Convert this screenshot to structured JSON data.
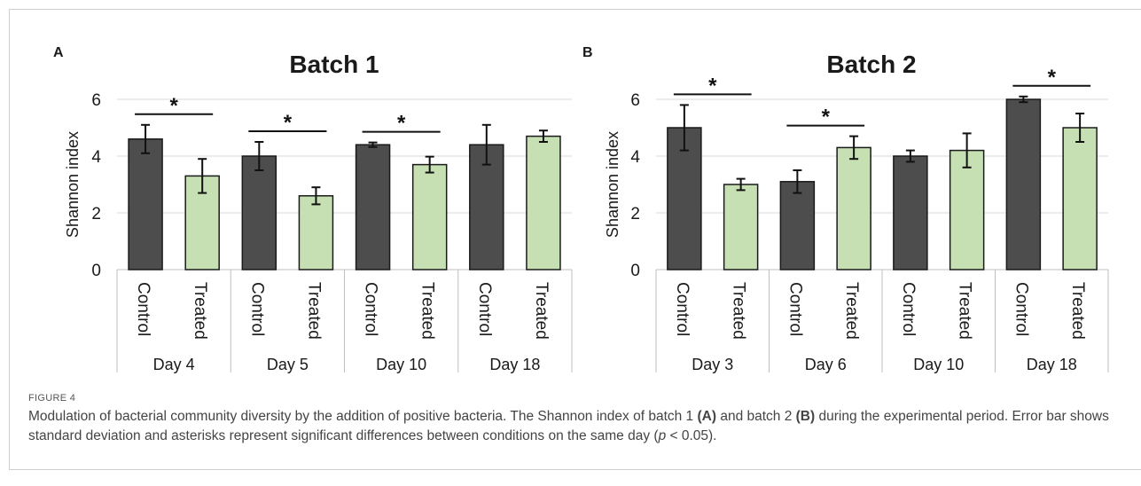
{
  "figure": {
    "label": "FIGURE 4",
    "caption_parts": [
      {
        "text": "Modulation of bacterial community diversity by the addition of positive bacteria. The Shannon index of batch 1 ",
        "style": "normal"
      },
      {
        "text": "(A)",
        "style": "bold"
      },
      {
        "text": " and batch 2 ",
        "style": "normal"
      },
      {
        "text": "(B)",
        "style": "bold"
      },
      {
        "text": " during the experimental period. Error bar shows standard deviation and asterisks represent significant differences between conditions on the same day (",
        "style": "normal"
      },
      {
        "text": "p",
        "style": "italic"
      },
      {
        "text": " < 0.05).",
        "style": "normal"
      }
    ]
  },
  "colors": {
    "control": "#4d4d4d",
    "treated": "#c6e0b4",
    "bar_stroke": "#1a1a1a",
    "gridline": "#d9d9d9",
    "axis_text": "#1a1a1a"
  },
  "chart_data": [
    {
      "panel": "A",
      "type": "bar",
      "title": "Batch 1",
      "ylabel": "Shannon index",
      "ylim": [
        0,
        6
      ],
      "yticks": [
        0,
        2,
        4,
        6
      ],
      "grid": true,
      "bar_labels": [
        "Control",
        "Treated"
      ],
      "groups": [
        {
          "day": "Day 4",
          "control": {
            "value": 4.6,
            "sd": 0.5
          },
          "treated": {
            "value": 3.3,
            "sd": 0.6
          },
          "significant": true
        },
        {
          "day": "Day 5",
          "control": {
            "value": 4.0,
            "sd": 0.5
          },
          "treated": {
            "value": 2.6,
            "sd": 0.3
          },
          "significant": true
        },
        {
          "day": "Day 10",
          "control": {
            "value": 4.4,
            "sd": 0.08
          },
          "treated": {
            "value": 3.7,
            "sd": 0.28
          },
          "significant": true
        },
        {
          "day": "Day 18",
          "control": {
            "value": 4.4,
            "sd": 0.7
          },
          "treated": {
            "value": 4.7,
            "sd": 0.2
          },
          "significant": false
        }
      ],
      "significance_marker": "*"
    },
    {
      "panel": "B",
      "type": "bar",
      "title": "Batch 2",
      "ylabel": "Shannon index",
      "ylim": [
        0,
        6
      ],
      "yticks": [
        0,
        2,
        4,
        6
      ],
      "grid": true,
      "bar_labels": [
        "Control",
        "Treated"
      ],
      "groups": [
        {
          "day": "Day 3",
          "control": {
            "value": 5.0,
            "sd": 0.8
          },
          "treated": {
            "value": 3.0,
            "sd": 0.2
          },
          "significant": true
        },
        {
          "day": "Day 6",
          "control": {
            "value": 3.1,
            "sd": 0.4
          },
          "treated": {
            "value": 4.3,
            "sd": 0.4
          },
          "significant": true
        },
        {
          "day": "Day 10",
          "control": {
            "value": 4.0,
            "sd": 0.2
          },
          "treated": {
            "value": 4.2,
            "sd": 0.6
          },
          "significant": false
        },
        {
          "day": "Day 18",
          "control": {
            "value": 6.0,
            "sd": 0.1
          },
          "treated": {
            "value": 5.0,
            "sd": 0.5
          },
          "significant": true
        }
      ],
      "significance_marker": "*"
    }
  ]
}
